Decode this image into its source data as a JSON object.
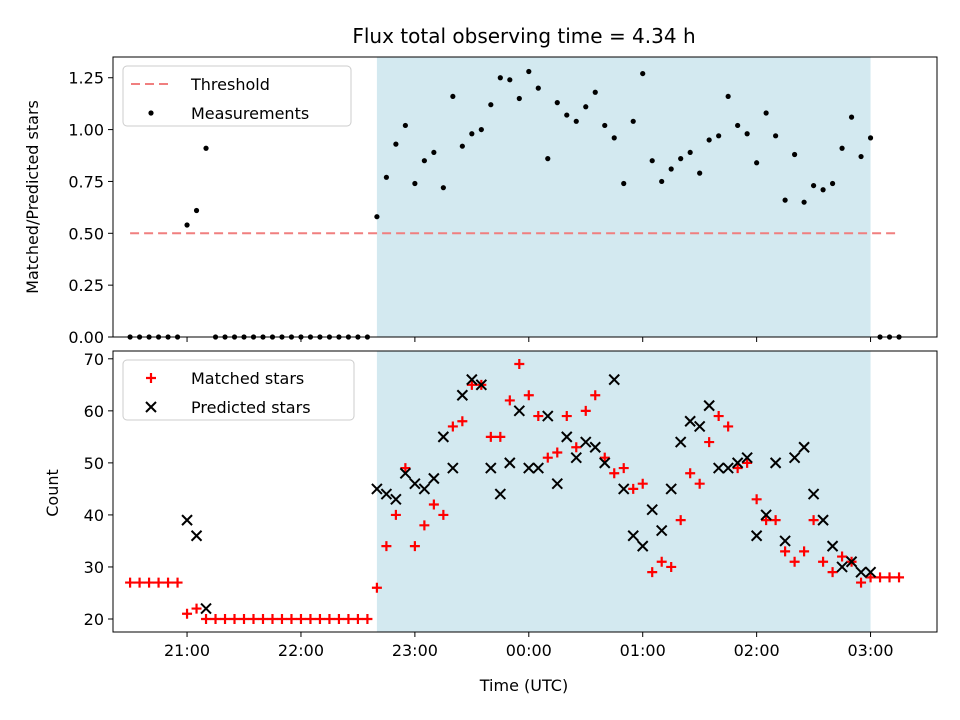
{
  "chart_data": [
    {
      "type": "scatter",
      "title": "Flux total observing time = 4.34 h",
      "xlabel": "",
      "ylabel": "Matched/Predicted stars",
      "ylim": [
        0,
        1.35
      ],
      "yticks": [
        "0.00",
        "0.25",
        "0.50",
        "0.75",
        "1.00",
        "1.25"
      ],
      "xlim": [
        "20:21",
        "03:35"
      ],
      "shaded_interval": {
        "start": "22:40",
        "end": "03:00",
        "color": "#d3e9f0"
      },
      "legend": {
        "position": "top-left"
      },
      "threshold": {
        "name": "Threshold",
        "value": 0.5,
        "x_start": "20:30",
        "x_end": "03:15",
        "color": "#f07f7f"
      },
      "series": [
        {
          "name": "Measurements",
          "color": "#000000",
          "x": [
            "20:30",
            "20:35",
            "20:40",
            "20:45",
            "20:50",
            "20:55",
            "21:00",
            "21:05",
            "21:10",
            "21:15",
            "21:20",
            "21:25",
            "21:30",
            "21:35",
            "21:40",
            "21:45",
            "21:50",
            "21:55",
            "22:00",
            "22:05",
            "22:10",
            "22:15",
            "22:20",
            "22:25",
            "22:30",
            "22:35",
            "22:40",
            "22:45",
            "22:50",
            "22:55",
            "23:00",
            "23:05",
            "23:10",
            "23:15",
            "23:20",
            "23:25",
            "23:30",
            "23:35",
            "23:40",
            "23:45",
            "23:50",
            "23:55",
            "00:00",
            "00:05",
            "00:10",
            "00:15",
            "00:20",
            "00:25",
            "00:30",
            "00:35",
            "00:40",
            "00:45",
            "00:50",
            "00:55",
            "01:00",
            "01:05",
            "01:10",
            "01:15",
            "01:20",
            "01:25",
            "01:30",
            "01:35",
            "01:40",
            "01:45",
            "01:50",
            "01:55",
            "02:00",
            "02:05",
            "02:10",
            "02:15",
            "02:20",
            "02:25",
            "02:30",
            "02:35",
            "02:40",
            "02:45",
            "02:50",
            "02:55",
            "03:00",
            "03:05",
            "03:10",
            "03:15"
          ],
          "values": [
            0,
            0,
            0,
            0,
            0,
            0,
            0.54,
            0.61,
            0.91,
            0,
            0,
            0,
            0,
            0,
            0,
            0,
            0,
            0,
            0,
            0,
            0,
            0,
            0,
            0,
            0,
            0,
            0.58,
            0.77,
            0.93,
            1.02,
            0.74,
            0.85,
            0.89,
            0.72,
            1.16,
            0.92,
            0.98,
            1.0,
            1.12,
            1.25,
            1.24,
            1.15,
            1.28,
            1.2,
            0.86,
            1.13,
            1.07,
            1.04,
            1.11,
            1.18,
            1.02,
            0.96,
            0.74,
            1.04,
            1.27,
            0.85,
            0.75,
            0.81,
            0.86,
            0.89,
            0.79,
            0.95,
            0.97,
            1.16,
            1.02,
            0.98,
            0.84,
            1.08,
            0.97,
            0.66,
            0.88,
            0.65,
            0.73,
            0.71,
            0.74,
            0.91,
            1.06,
            0.87,
            0.96,
            0,
            0,
            0
          ]
        }
      ]
    },
    {
      "type": "scatter",
      "title": "",
      "xlabel": "Time (UTC)",
      "ylabel": "Count",
      "ylim": [
        17.5,
        71.5
      ],
      "yticks": [
        "20",
        "30",
        "40",
        "50",
        "60",
        "70"
      ],
      "xlim": [
        "20:21",
        "03:35"
      ],
      "xticks": [
        "21:00",
        "22:00",
        "23:00",
        "00:00",
        "01:00",
        "02:00",
        "03:00"
      ],
      "shaded_interval": {
        "start": "22:40",
        "end": "03:00",
        "color": "#d3e9f0"
      },
      "legend": {
        "position": "top-left"
      },
      "series": [
        {
          "name": "Matched stars",
          "marker": "plus",
          "color": "#ff0000",
          "x": [
            "20:30",
            "20:35",
            "20:40",
            "20:45",
            "20:50",
            "20:55",
            "21:00",
            "21:05",
            "21:10",
            "21:15",
            "21:20",
            "21:25",
            "21:30",
            "21:35",
            "21:40",
            "21:45",
            "21:50",
            "21:55",
            "22:00",
            "22:05",
            "22:10",
            "22:15",
            "22:20",
            "22:25",
            "22:30",
            "22:35",
            "22:40",
            "22:45",
            "22:50",
            "22:55",
            "23:00",
            "23:05",
            "23:10",
            "23:15",
            "23:20",
            "23:25",
            "23:30",
            "23:35",
            "23:40",
            "23:45",
            "23:50",
            "23:55",
            "00:00",
            "00:05",
            "00:10",
            "00:15",
            "00:20",
            "00:25",
            "00:30",
            "00:35",
            "00:40",
            "00:45",
            "00:50",
            "00:55",
            "01:00",
            "01:05",
            "01:10",
            "01:15",
            "01:20",
            "01:25",
            "01:30",
            "01:35",
            "01:40",
            "01:45",
            "01:50",
            "01:55",
            "02:00",
            "02:05",
            "02:10",
            "02:15",
            "02:20",
            "02:25",
            "02:30",
            "02:35",
            "02:40",
            "02:45",
            "02:50",
            "02:55",
            "03:00",
            "03:05",
            "03:10",
            "03:15"
          ],
          "values": [
            27,
            27,
            27,
            27,
            27,
            27,
            21,
            22,
            20,
            20,
            20,
            20,
            20,
            20,
            20,
            20,
            20,
            20,
            20,
            20,
            20,
            20,
            20,
            20,
            20,
            20,
            26,
            34,
            40,
            49,
            34,
            38,
            42,
            40,
            57,
            58,
            65,
            65,
            55,
            55,
            62,
            69,
            63,
            59,
            51,
            52,
            59,
            53,
            60,
            63,
            51,
            48,
            49,
            45,
            46,
            29,
            31,
            30,
            39,
            48,
            46,
            54,
            59,
            57,
            49,
            50,
            43,
            39,
            39,
            33,
            31,
            33,
            39,
            31,
            29,
            32,
            31,
            27,
            28,
            28,
            28,
            28
          ]
        },
        {
          "name": "Predicted stars",
          "marker": "x",
          "color": "#000000",
          "x": [
            "21:00",
            "21:05",
            "21:10",
            "22:40",
            "22:45",
            "22:50",
            "22:55",
            "23:00",
            "23:05",
            "23:10",
            "23:15",
            "23:20",
            "23:25",
            "23:30",
            "23:35",
            "23:40",
            "23:45",
            "23:50",
            "23:55",
            "00:00",
            "00:05",
            "00:10",
            "00:15",
            "00:20",
            "00:25",
            "00:30",
            "00:35",
            "00:40",
            "00:45",
            "00:50",
            "00:55",
            "01:00",
            "01:05",
            "01:10",
            "01:15",
            "01:20",
            "01:25",
            "01:30",
            "01:35",
            "01:40",
            "01:45",
            "01:50",
            "01:55",
            "02:00",
            "02:05",
            "02:10",
            "02:15",
            "02:20",
            "02:25",
            "02:30",
            "02:35",
            "02:40",
            "02:45",
            "02:50",
            "02:55",
            "03:00"
          ],
          "values": [
            39,
            36,
            22,
            45,
            44,
            43,
            48,
            46,
            45,
            47,
            55,
            49,
            63,
            66,
            65,
            49,
            44,
            50,
            60,
            49,
            49,
            59,
            46,
            55,
            51,
            54,
            53,
            50,
            66,
            45,
            36,
            34,
            41,
            37,
            45,
            54,
            58,
            57,
            61,
            49,
            49,
            50,
            51,
            36,
            40,
            50,
            35,
            51,
            53,
            44,
            39,
            34,
            30,
            31,
            29,
            29
          ]
        }
      ]
    }
  ]
}
